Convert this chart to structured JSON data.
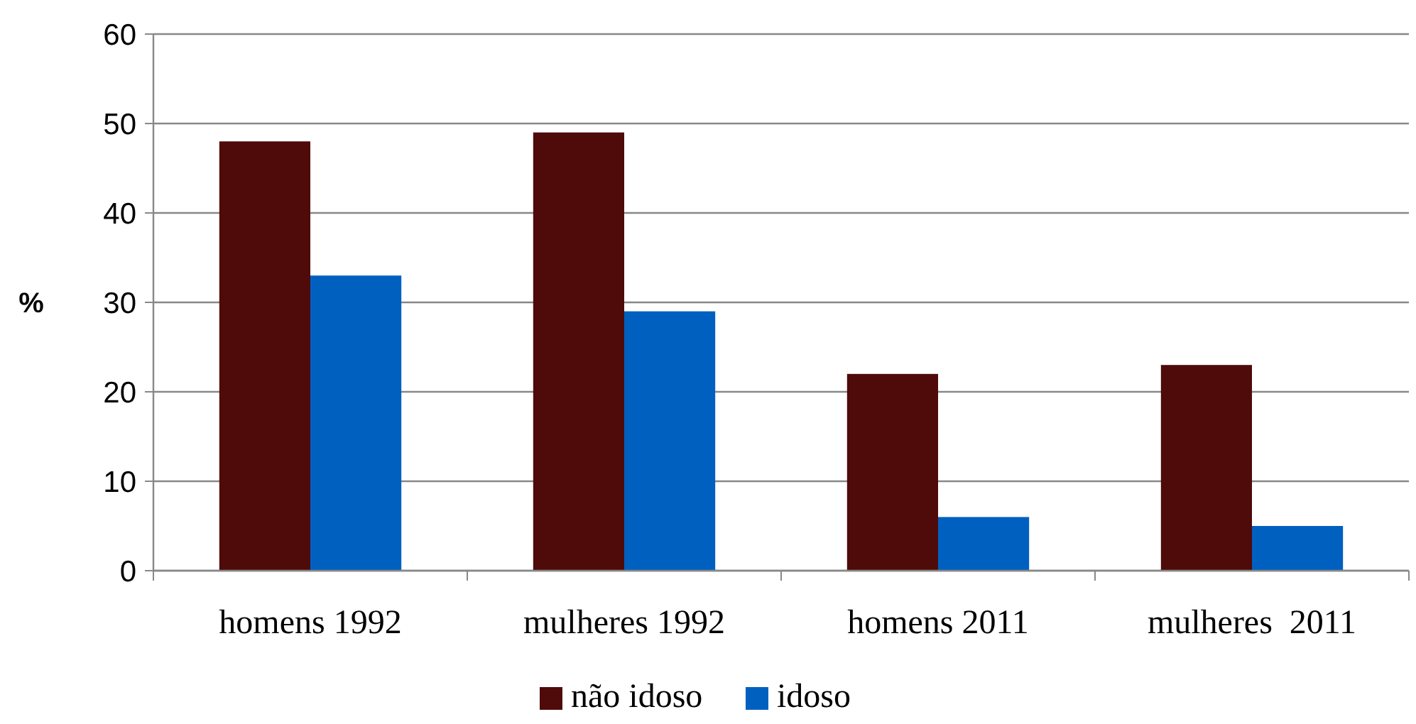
{
  "chart_data": {
    "type": "bar",
    "ylabel": "%",
    "categories": [
      "homens 1992",
      "mulheres 1992",
      "homens 2011",
      "mulheres  2011"
    ],
    "series": [
      {
        "name": "não idoso",
        "color": "#4f0a0a",
        "values": [
          48,
          49,
          22,
          23
        ]
      },
      {
        "name": "idoso",
        "color": "#0060c0",
        "values": [
          33,
          29,
          6,
          5
        ]
      }
    ],
    "ylim": [
      0,
      60
    ],
    "yticks": [
      0,
      10,
      20,
      30,
      40,
      50,
      60
    ],
    "grid": "y",
    "legend": "bottom"
  }
}
